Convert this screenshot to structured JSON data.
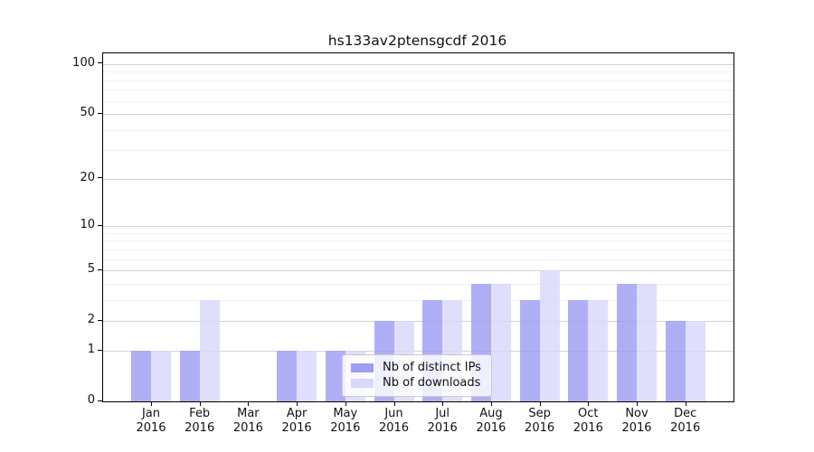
{
  "chart_data": {
    "type": "bar",
    "title": "hs133av2ptensgcdf 2016",
    "categories": [
      "Jan",
      "Feb",
      "Mar",
      "Apr",
      "May",
      "Jun",
      "Jul",
      "Aug",
      "Sep",
      "Oct",
      "Nov",
      "Dec"
    ],
    "x_year_label": "2016",
    "series": [
      {
        "name": "Nb of distinct IPs",
        "color": "#9d9df4",
        "values": [
          1,
          1,
          0,
          1,
          1,
          2,
          3,
          4,
          3,
          3,
          4,
          2
        ]
      },
      {
        "name": "Nb of downloads",
        "color": "#d8d8fa",
        "values": [
          1,
          3,
          0,
          1,
          1,
          2,
          3,
          4,
          5,
          3,
          4,
          2
        ]
      }
    ],
    "y_scale": "log1p",
    "y_major_ticks": [
      0,
      1,
      2,
      5,
      10,
      20,
      50,
      100
    ],
    "y_minor_gridlines": [
      3,
      4,
      6,
      7,
      8,
      9,
      30,
      40,
      60,
      70,
      80,
      90
    ],
    "ylim": [
      0,
      116
    ],
    "grid": true,
    "legend_position": "lower center"
  }
}
